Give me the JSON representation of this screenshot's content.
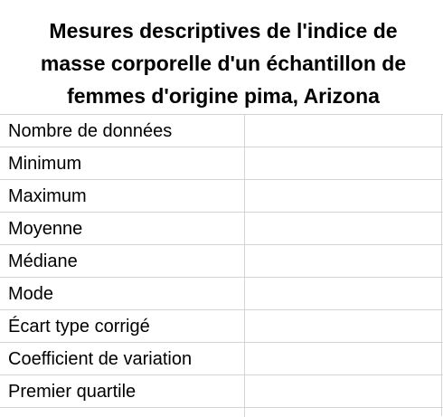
{
  "sheet": {
    "title_lines": [
      "Mesures descriptives de l'indice de",
      "masse corporelle d'un échantillon de",
      "femmes d'origine pima, Arizona"
    ],
    "rows": [
      {
        "label": "Nombre de données",
        "value": ""
      },
      {
        "label": "Minimum",
        "value": ""
      },
      {
        "label": "Maximum",
        "value": ""
      },
      {
        "label": "Moyenne",
        "value": ""
      },
      {
        "label": "Médiane",
        "value": ""
      },
      {
        "label": "Mode",
        "value": ""
      },
      {
        "label": "Écart type corrigé",
        "value": ""
      },
      {
        "label": "Coefficient de variation",
        "value": ""
      },
      {
        "label": "Premier quartile",
        "value": ""
      }
    ]
  }
}
